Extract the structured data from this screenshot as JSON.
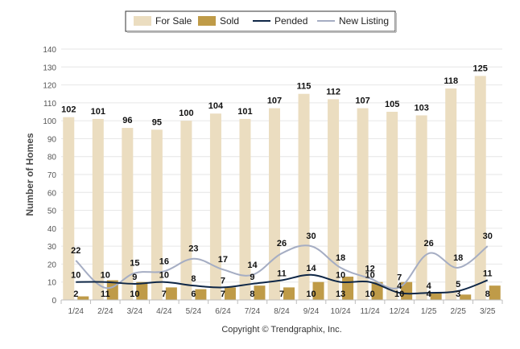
{
  "chart_data": {
    "type": "bar",
    "title": "",
    "ylabel": "Number of Homes",
    "xlabel": "",
    "ylim": [
      0,
      140
    ],
    "ytick_step": 10,
    "grid": true,
    "legend_position": "top-center",
    "categories": [
      "1/24",
      "2/24",
      "3/24",
      "4/24",
      "5/24",
      "6/24",
      "7/24",
      "8/24",
      "9/24",
      "10/24",
      "11/24",
      "12/24",
      "1/25",
      "2/25",
      "3/25"
    ],
    "series": [
      {
        "name": "For Sale",
        "type": "bar",
        "color": "#EBDDC0",
        "values": [
          102,
          101,
          96,
          95,
          100,
          104,
          101,
          107,
          115,
          112,
          107,
          105,
          103,
          118,
          125
        ]
      },
      {
        "name": "Sold",
        "type": "bar",
        "color": "#BF9B48",
        "values": [
          2,
          11,
          10,
          7,
          6,
          7,
          8,
          7,
          10,
          13,
          10,
          10,
          4,
          3,
          8
        ]
      },
      {
        "name": "Pended",
        "type": "line",
        "color": "#0F2747",
        "values": [
          10,
          10,
          9,
          10,
          8,
          7,
          9,
          11,
          14,
          10,
          10,
          4,
          4,
          5,
          11
        ]
      },
      {
        "name": "New Listing",
        "type": "line",
        "color": "#A5ADC3",
        "values": [
          22,
          null,
          15,
          16,
          23,
          17,
          14,
          26,
          30,
          18,
          12,
          7,
          26,
          18,
          30
        ]
      }
    ],
    "footer": "Copyright © Trendgraphix, Inc."
  }
}
